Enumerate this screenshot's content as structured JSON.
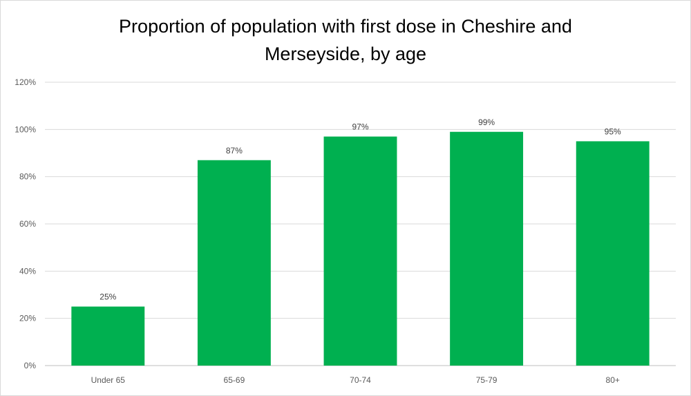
{
  "chart_data": {
    "type": "bar",
    "title_lines": [
      "Proportion of population with first dose in Cheshire and",
      "Merseyside, by age"
    ],
    "categories": [
      "Under 65",
      "65-69",
      "70-74",
      "75-79",
      "80+"
    ],
    "values": [
      25,
      87,
      97,
      99,
      95
    ],
    "data_labels": [
      "25%",
      "87%",
      "97%",
      "99%",
      "95%"
    ],
    "ylim": [
      0,
      120
    ],
    "yticks": [
      0,
      20,
      40,
      60,
      80,
      100,
      120
    ],
    "ytick_labels": [
      "0%",
      "20%",
      "40%",
      "60%",
      "80%",
      "100%",
      "120%"
    ],
    "xlabel": "",
    "ylabel": "",
    "grid": true,
    "legend": "none",
    "colors": {
      "bar": "#00b050",
      "grid": "#d9d9d9",
      "axis": "#bfbfbf"
    }
  }
}
